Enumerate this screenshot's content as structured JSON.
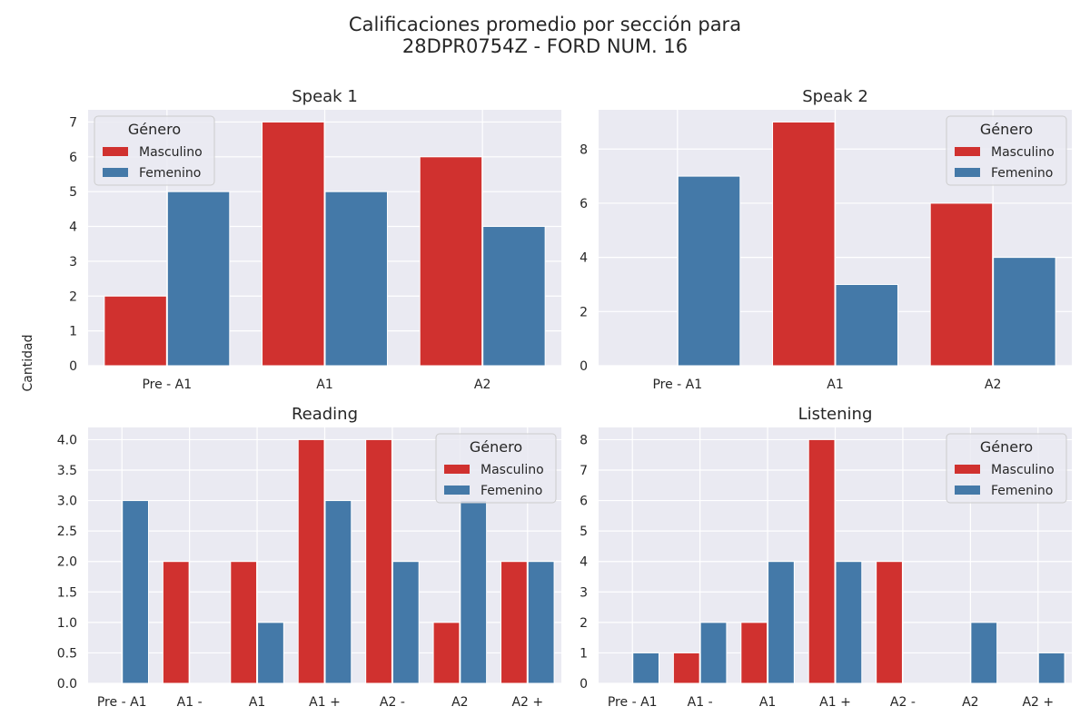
{
  "suptitle_line1": "Calificaciones promedio por sección para",
  "suptitle_line2": "28DPR0754Z - FORD NUM. 16",
  "ylabel": "Cantidad",
  "colors": {
    "Masculino": "#d0312f",
    "Femenino": "#4479a8",
    "background": "#eaeaf2",
    "grid": "#ffffff"
  },
  "chart_data": [
    {
      "type": "bar",
      "title": "Speak 1",
      "categories": [
        "Pre - A1",
        "A1",
        "A2"
      ],
      "series": [
        {
          "name": "Masculino",
          "values": [
            2,
            7,
            6
          ]
        },
        {
          "name": "Femenino",
          "values": [
            5,
            5,
            4
          ]
        }
      ],
      "ylim": [
        0,
        7.35
      ],
      "yticks": [
        0,
        1,
        2,
        3,
        4,
        5,
        6,
        7
      ],
      "legend": {
        "title": "Género",
        "placement": "top-left"
      },
      "grid": true
    },
    {
      "type": "bar",
      "title": "Speak 2",
      "categories": [
        "Pre - A1",
        "A1",
        "A2"
      ],
      "series": [
        {
          "name": "Masculino",
          "values": [
            0,
            9,
            6
          ]
        },
        {
          "name": "Femenino",
          "values": [
            7,
            3,
            4
          ]
        }
      ],
      "ylim": [
        0,
        9.45
      ],
      "yticks": [
        0,
        2,
        4,
        6,
        8
      ],
      "legend": {
        "title": "Género",
        "placement": "top-right"
      },
      "grid": true
    },
    {
      "type": "bar",
      "title": "Reading",
      "categories": [
        "Pre - A1",
        "A1 -",
        "A1",
        "A1 +",
        "A2 -",
        "A2",
        "A2 +"
      ],
      "series": [
        {
          "name": "Masculino",
          "values": [
            0,
            2,
            2,
            4,
            4,
            1,
            2
          ]
        },
        {
          "name": "Femenino",
          "values": [
            3,
            0,
            1,
            3,
            2,
            3,
            2
          ]
        }
      ],
      "ylim": [
        0,
        4.2
      ],
      "yticks": [
        0.0,
        0.5,
        1.0,
        1.5,
        2.0,
        2.5,
        3.0,
        3.5,
        4.0
      ],
      "yticklabels": [
        "0.0",
        "0.5",
        "1.0",
        "1.5",
        "2.0",
        "2.5",
        "3.0",
        "3.5",
        "4.0"
      ],
      "legend": {
        "title": "Género",
        "placement": "top-right"
      },
      "grid": true
    },
    {
      "type": "bar",
      "title": "Listening",
      "categories": [
        "Pre - A1",
        "A1 -",
        "A1",
        "A1 +",
        "A2 -",
        "A2",
        "A2 +"
      ],
      "series": [
        {
          "name": "Masculino",
          "values": [
            0,
            1,
            2,
            8,
            4,
            0,
            0
          ]
        },
        {
          "name": "Femenino",
          "values": [
            1,
            2,
            4,
            4,
            0,
            2,
            1
          ]
        }
      ],
      "ylim": [
        0,
        8.4
      ],
      "yticks": [
        0,
        1,
        2,
        3,
        4,
        5,
        6,
        7,
        8
      ],
      "legend": {
        "title": "Género",
        "placement": "top-right"
      },
      "grid": true
    }
  ]
}
